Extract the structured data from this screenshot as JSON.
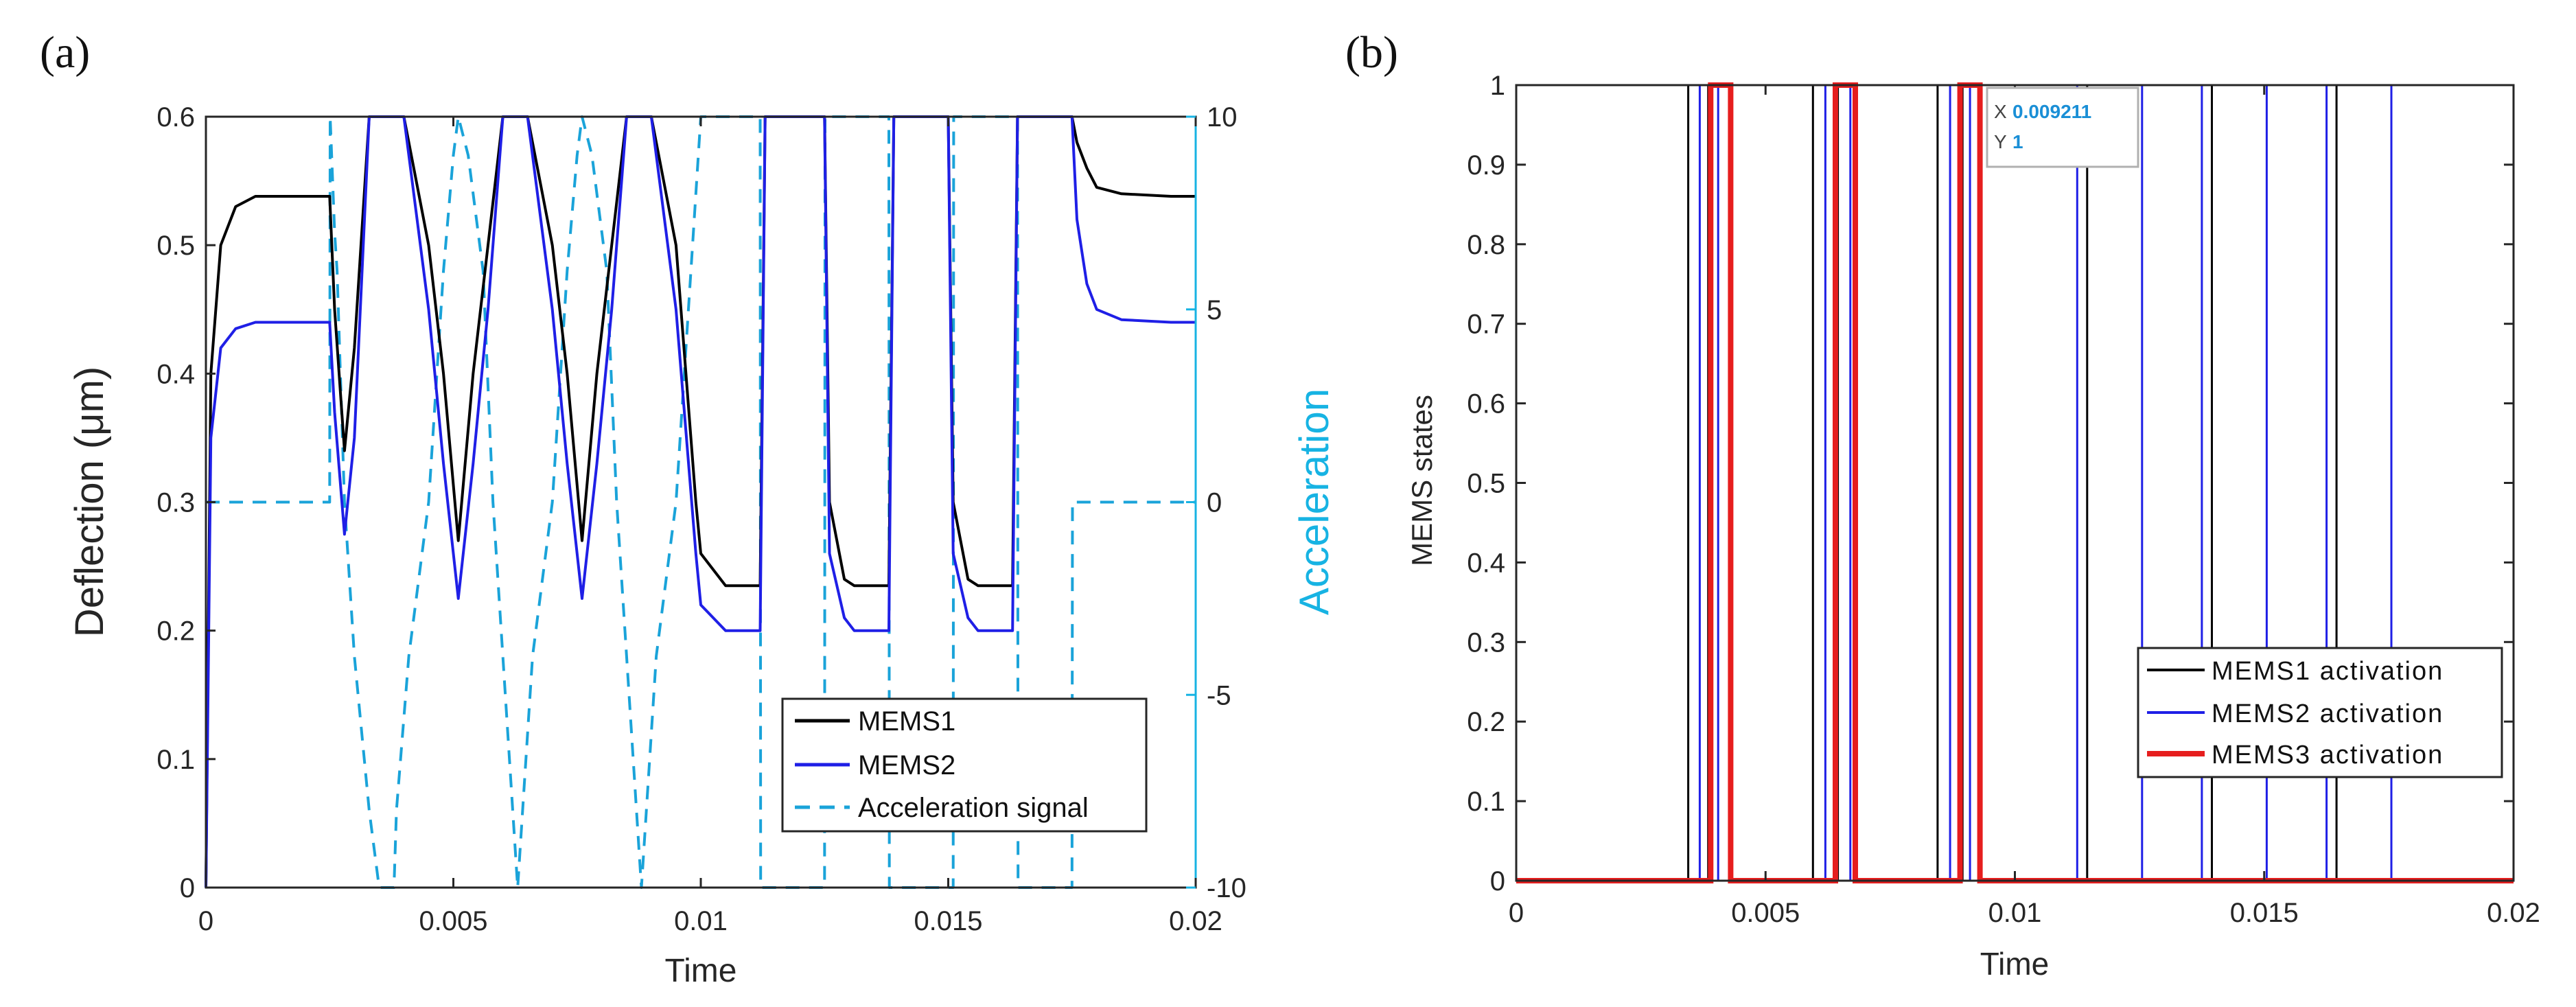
{
  "colors": {
    "mems1": "#000000",
    "mems2": "#1f1fe6",
    "mems3": "#e61e1e",
    "accel": "#1aa3d9",
    "axis": "#262626",
    "accelAxis": "#17b3e3"
  },
  "chart_data": [
    {
      "panel": "(a)",
      "type": "line",
      "xlabel": "Time",
      "ylabel": "Deflection (μm)",
      "ylabel_right": "Acceleration",
      "xlim": [
        0,
        0.02
      ],
      "ylim": [
        0,
        0.6
      ],
      "ylim_right": [
        -10,
        10
      ],
      "xticks": [
        "0",
        "0.005",
        "0.01",
        "0.015",
        "0.02"
      ],
      "yticks": [
        "0",
        "0.1",
        "0.2",
        "0.3",
        "0.4",
        "0.5",
        "0.6"
      ],
      "yticks_right": [
        "-10",
        "-5",
        "0",
        "5",
        "10"
      ],
      "legend": [
        "MEMS1",
        "MEMS2",
        "Acceleration signal"
      ],
      "legend_position": "bottom-right",
      "series": [
        {
          "name": "MEMS1",
          "x": [
            0,
            0.0001,
            0.0003,
            0.0006,
            0.001,
            0.0015,
            0.0025,
            0.0026,
            0.0028,
            0.003,
            0.0033,
            0.0035,
            0.004,
            0.0045,
            0.0048,
            0.0051,
            0.0054,
            0.0057,
            0.006,
            0.0065,
            0.007,
            0.0073,
            0.0076,
            0.0079,
            0.0082,
            0.0085,
            0.009,
            0.0095,
            0.0099,
            0.01,
            0.0105,
            0.0112,
            0.0113,
            0.0116,
            0.0118,
            0.012,
            0.0125,
            0.0126,
            0.0129,
            0.0131,
            0.0135,
            0.0138,
            0.0139,
            0.0141,
            0.0143,
            0.0145,
            0.015,
            0.0151,
            0.0154,
            0.0156,
            0.016,
            0.0163,
            0.0164,
            0.0166,
            0.0168,
            0.017,
            0.0175,
            0.0176,
            0.0178,
            0.018,
            0.0185,
            0.0195,
            0.02
          ],
          "values": [
            0,
            0.4,
            0.5,
            0.53,
            0.538,
            0.538,
            0.538,
            0.45,
            0.34,
            0.42,
            0.6,
            0.6,
            0.6,
            0.5,
            0.4,
            0.27,
            0.4,
            0.5,
            0.6,
            0.6,
            0.5,
            0.4,
            0.27,
            0.4,
            0.5,
            0.6,
            0.6,
            0.5,
            0.3,
            0.26,
            0.235,
            0.235,
            0.6,
            0.6,
            0.6,
            0.6,
            0.6,
            0.3,
            0.24,
            0.235,
            0.235,
            0.235,
            0.6,
            0.6,
            0.6,
            0.6,
            0.6,
            0.3,
            0.24,
            0.235,
            0.235,
            0.235,
            0.6,
            0.6,
            0.6,
            0.6,
            0.6,
            0.58,
            0.56,
            0.545,
            0.54,
            0.538,
            0.538
          ]
        },
        {
          "name": "MEMS2",
          "x": [
            0,
            0.0001,
            0.0003,
            0.0006,
            0.001,
            0.0015,
            0.0025,
            0.0026,
            0.0028,
            0.003,
            0.0033,
            0.0035,
            0.004,
            0.0045,
            0.0048,
            0.0051,
            0.0054,
            0.0057,
            0.006,
            0.0065,
            0.007,
            0.0073,
            0.0076,
            0.0079,
            0.0082,
            0.0085,
            0.009,
            0.0095,
            0.0099,
            0.01,
            0.0105,
            0.0112,
            0.0113,
            0.0116,
            0.0118,
            0.012,
            0.0125,
            0.0126,
            0.0129,
            0.0131,
            0.0135,
            0.0138,
            0.0139,
            0.0141,
            0.0143,
            0.0145,
            0.015,
            0.0151,
            0.0154,
            0.0156,
            0.016,
            0.0163,
            0.0164,
            0.0166,
            0.0168,
            0.017,
            0.0175,
            0.0176,
            0.0178,
            0.018,
            0.0185,
            0.0195,
            0.02
          ],
          "values": [
            0,
            0.35,
            0.42,
            0.435,
            0.44,
            0.44,
            0.44,
            0.37,
            0.275,
            0.35,
            0.6,
            0.6,
            0.6,
            0.45,
            0.33,
            0.225,
            0.33,
            0.45,
            0.6,
            0.6,
            0.45,
            0.33,
            0.225,
            0.33,
            0.45,
            0.6,
            0.6,
            0.45,
            0.26,
            0.22,
            0.2,
            0.2,
            0.6,
            0.6,
            0.6,
            0.6,
            0.6,
            0.26,
            0.21,
            0.2,
            0.2,
            0.2,
            0.6,
            0.6,
            0.6,
            0.6,
            0.6,
            0.26,
            0.21,
            0.2,
            0.2,
            0.2,
            0.6,
            0.6,
            0.6,
            0.6,
            0.6,
            0.52,
            0.47,
            0.45,
            0.442,
            0.44,
            0.44
          ]
        },
        {
          "name": "Acceleration signal",
          "axis": "right",
          "x": [
            0,
            0.0025,
            0.00251,
            0.0026,
            0.00265,
            0.0027,
            0.0028,
            0.003,
            0.0033,
            0.0035,
            0.0037,
            0.0038,
            0.00385,
            0.0041,
            0.0045,
            0.0048,
            0.005,
            0.0051,
            0.0053,
            0.0056,
            0.0058,
            0.006,
            0.0062,
            0.0063,
            0.0064,
            0.0066,
            0.007,
            0.0073,
            0.0075,
            0.0076,
            0.0078,
            0.0081,
            0.0083,
            0.0085,
            0.0087,
            0.0088,
            0.0089,
            0.0091,
            0.0095,
            0.0098,
            0.01,
            0.0102,
            0.0112,
            0.01121,
            0.0125,
            0.01251,
            0.0138,
            0.01381,
            0.0151,
            0.01511,
            0.0164,
            0.01641,
            0.0175,
            0.01751,
            0.02
          ],
          "values": [
            0,
            0,
            10,
            7,
            6,
            4,
            0,
            -4,
            -8,
            -10,
            -10,
            -10,
            -8,
            -4,
            0,
            6,
            9,
            10,
            9,
            6,
            0,
            -4,
            -8,
            -10,
            -8,
            -4,
            0,
            6,
            9,
            10,
            9,
            6,
            0,
            -4,
            -8,
            -10,
            -8,
            -4,
            0,
            6,
            10,
            10,
            10,
            -10,
            -10,
            10,
            10,
            -10,
            -10,
            10,
            10,
            -10,
            -10,
            0,
            0
          ]
        }
      ]
    },
    {
      "panel": "(b)",
      "type": "line",
      "xlabel": "Time",
      "ylabel": "MEMS states",
      "xlim": [
        0,
        0.02
      ],
      "ylim": [
        0,
        1
      ],
      "xticks": [
        "0",
        "0.005",
        "0.01",
        "0.015",
        "0.02"
      ],
      "yticks": [
        "0",
        "0.1",
        "0.2",
        "0.3",
        "0.4",
        "0.5",
        "0.6",
        "0.7",
        "0.8",
        "0.9",
        "1"
      ],
      "legend": [
        "MEMS1 activation",
        "MEMS2 activation",
        "MEMS3 activation"
      ],
      "legend_position": "bottom-right",
      "datatip": {
        "x_label": "X",
        "x_value": "0.009211",
        "y_label": "Y",
        "y_value": "1"
      },
      "series": [
        {
          "name": "MEMS1 activation",
          "x": [
            0,
            0.00345,
            0.00345,
            0.00385,
            0.00385,
            0.00595,
            0.00595,
            0.00645,
            0.00645,
            0.00845,
            0.00845,
            0.00895,
            0.00895,
            0.01145,
            0.01145,
            0.01395,
            0.01395,
            0.01645,
            0.01645,
            0.02
          ],
          "values": [
            0,
            0,
            1,
            1,
            0,
            0,
            1,
            1,
            0,
            0,
            1,
            1,
            0,
            0,
            1,
            1,
            0,
            0,
            1,
            1
          ]
        },
        {
          "name": "MEMS2 activation",
          "x": [
            0,
            0.00368,
            0.00368,
            0.00405,
            0.00405,
            0.0062,
            0.0062,
            0.0067,
            0.0067,
            0.0087,
            0.0087,
            0.0091,
            0.0091,
            0.01125,
            0.01125,
            0.01255,
            0.01255,
            0.01375,
            0.01375,
            0.01505,
            0.01505,
            0.01625,
            0.01625,
            0.01755,
            0.01755,
            0.02
          ],
          "values": [
            0,
            0,
            1,
            1,
            0,
            0,
            1,
            1,
            0,
            0,
            1,
            1,
            0,
            0,
            1,
            1,
            0,
            0,
            1,
            1,
            0,
            0,
            1,
            1,
            0,
            0
          ]
        },
        {
          "name": "MEMS3 activation",
          "x": [
            0,
            0.0039,
            0.0039,
            0.0043,
            0.0043,
            0.0064,
            0.0064,
            0.0068,
            0.0068,
            0.0089,
            0.0089,
            0.0093,
            0.0093,
            0.02
          ],
          "values": [
            0,
            0,
            1,
            1,
            0,
            0,
            1,
            1,
            0,
            0,
            1,
            1,
            0,
            0
          ]
        }
      ]
    }
  ]
}
